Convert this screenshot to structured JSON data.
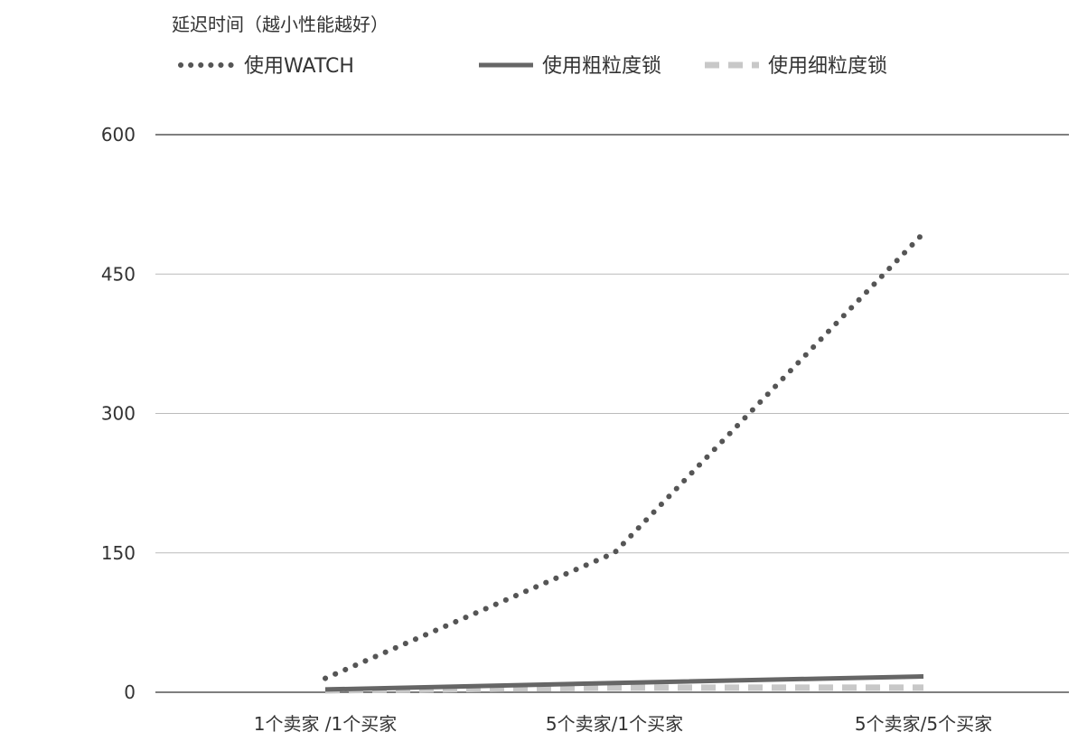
{
  "chart_data": {
    "type": "line",
    "title": "延迟时间（越小性能越好）",
    "xlabel": "",
    "ylabel": "",
    "categories": [
      "1个卖家 /1个买家",
      "5个卖家/1个买家",
      "5个卖家/5个买家"
    ],
    "ylim": [
      0,
      600
    ],
    "yticks": [
      0,
      150,
      300,
      450,
      600
    ],
    "grid": true,
    "legend_position": "top",
    "series": [
      {
        "name": "使用WATCH",
        "values": [
          15,
          150,
          494
        ],
        "color": "#555555",
        "style": "dotted"
      },
      {
        "name": "使用粗粒度锁",
        "values": [
          3,
          10,
          17
        ],
        "color": "#666666",
        "style": "solid"
      },
      {
        "name": "使用细粒度锁",
        "values": [
          2,
          5,
          5
        ],
        "color": "#c8c8c8",
        "style": "dashed"
      }
    ]
  }
}
